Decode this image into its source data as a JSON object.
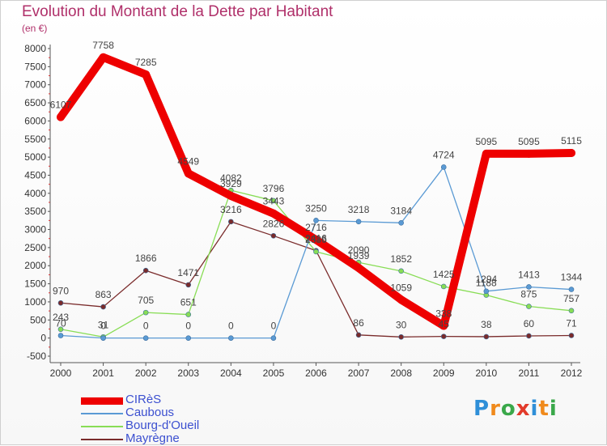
{
  "title": "Evolution du Montant de la Dette par Habitant",
  "unit": "(en €)",
  "logo": {
    "letters": [
      "P",
      "r",
      "o",
      "x",
      "i",
      "t",
      "i"
    ],
    "colors": [
      "#2f8fd8",
      "#f08a1c",
      "#3aa84a",
      "#e23a2a",
      "#2f8fd8",
      "#f08a1c",
      "#3aa84a"
    ]
  },
  "chart_data": {
    "type": "line",
    "x": [
      "2000",
      "2001",
      "2002",
      "2003",
      "2004",
      "2005",
      "2006",
      "2007",
      "2008",
      "2009",
      "2010",
      "2011",
      "2012"
    ],
    "ylim": [
      -500,
      8000
    ],
    "yticks": [
      "-500",
      "0",
      "500",
      "1000",
      "1500",
      "2000",
      "2500",
      "3000",
      "3500",
      "4000",
      "4500",
      "5000",
      "5500",
      "6000",
      "6500",
      "7000",
      "7500",
      "8000"
    ],
    "grid": false,
    "legend": "bottom-left",
    "series": [
      {
        "name": "CIRèS",
        "color": "#ee0000",
        "values": [
          6107,
          7758,
          7285,
          4549,
          3929,
          3443,
          2716,
          1939,
          1059,
          338,
          5095,
          5095,
          5115
        ],
        "labels": [
          "6107",
          "7758",
          "7285",
          "4549",
          "3929",
          "3443",
          "2716",
          "1939",
          "1059",
          "338",
          "5095",
          "5095",
          "5115"
        ]
      },
      {
        "name": "Caubous",
        "color": "#5a9ad4",
        "values": [
          70,
          0,
          0,
          0,
          0,
          0,
          3250,
          3218,
          3184,
          4724,
          1294,
          1413,
          1344
        ],
        "labels": [
          "70",
          "0",
          "0",
          "0",
          "0",
          "0",
          "3250",
          "3218",
          "3184",
          "4724",
          "1294",
          "1413",
          "1344"
        ]
      },
      {
        "name": "Bourg-d'Oueil",
        "color": "#88dd55",
        "values": [
          243,
          31,
          705,
          651,
          4082,
          3796,
          2386,
          2090,
          1852,
          1425,
          1188,
          875,
          757
        ],
        "labels": [
          "243",
          "31",
          "705",
          "651",
          "4082",
          "3796",
          "2386",
          "2090",
          "1852",
          "1425",
          "1188",
          "875",
          "757"
        ]
      },
      {
        "name": "Mayrègne",
        "color": "#7a2b2b",
        "values": [
          970,
          863,
          1866,
          1471,
          3216,
          2826,
          2416,
          86,
          30,
          45,
          38,
          60,
          71
        ],
        "labels": [
          "970",
          "863",
          "1866",
          "1471",
          "3216",
          "2826",
          "2416",
          "86",
          "30",
          "45",
          "38",
          "60",
          "71"
        ]
      }
    ]
  }
}
